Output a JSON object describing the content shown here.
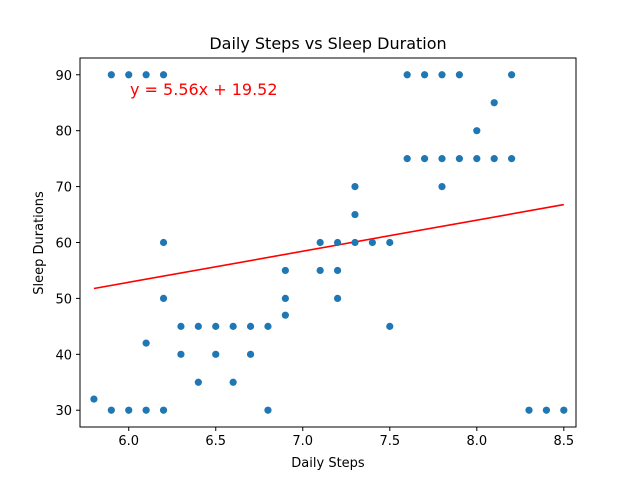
{
  "chart_data": {
    "type": "scatter",
    "title": "Daily Steps vs Sleep Duration",
    "xlabel": "Daily Steps",
    "ylabel": "Sleep Durations",
    "xlim": [
      5.72,
      8.57
    ],
    "ylim": [
      27,
      93
    ],
    "xticks": [
      6.0,
      6.5,
      7.0,
      7.5,
      8.0,
      8.5
    ],
    "xtick_labels": [
      "6.0",
      "6.5",
      "7.0",
      "7.5",
      "8.0",
      "8.5"
    ],
    "yticks": [
      30,
      40,
      50,
      60,
      70,
      80,
      90
    ],
    "ytick_labels": [
      "30",
      "40",
      "50",
      "60",
      "70",
      "80",
      "90"
    ],
    "grid": false,
    "colors": {
      "points": "#1f77b4",
      "regression": "#ff0000"
    },
    "regression": {
      "slope": 5.56,
      "intercept": 19.52,
      "x_range": [
        5.8,
        8.5
      ],
      "equation_label": "y = 5.56x + 19.52"
    },
    "points": [
      [
        5.8,
        32
      ],
      [
        5.9,
        30
      ],
      [
        5.9,
        90
      ],
      [
        6.0,
        30
      ],
      [
        6.0,
        90
      ],
      [
        6.1,
        30
      ],
      [
        6.1,
        42
      ],
      [
        6.1,
        90
      ],
      [
        6.2,
        30
      ],
      [
        6.2,
        50
      ],
      [
        6.2,
        60
      ],
      [
        6.2,
        90
      ],
      [
        6.3,
        40
      ],
      [
        6.3,
        45
      ],
      [
        6.4,
        35
      ],
      [
        6.4,
        45
      ],
      [
        6.5,
        40
      ],
      [
        6.5,
        45
      ],
      [
        6.6,
        35
      ],
      [
        6.6,
        45
      ],
      [
        6.7,
        40
      ],
      [
        6.7,
        45
      ],
      [
        6.8,
        30
      ],
      [
        6.8,
        45
      ],
      [
        6.9,
        47
      ],
      [
        6.9,
        50
      ],
      [
        6.9,
        55
      ],
      [
        7.1,
        55
      ],
      [
        7.1,
        60
      ],
      [
        7.2,
        50
      ],
      [
        7.2,
        55
      ],
      [
        7.2,
        60
      ],
      [
        7.3,
        60
      ],
      [
        7.3,
        65
      ],
      [
        7.3,
        70
      ],
      [
        7.4,
        60
      ],
      [
        7.5,
        45
      ],
      [
        7.5,
        60
      ],
      [
        7.6,
        75
      ],
      [
        7.6,
        90
      ],
      [
        7.7,
        75
      ],
      [
        7.7,
        90
      ],
      [
        7.8,
        70
      ],
      [
        7.8,
        75
      ],
      [
        7.8,
        90
      ],
      [
        7.9,
        75
      ],
      [
        7.9,
        90
      ],
      [
        8.0,
        75
      ],
      [
        8.0,
        80
      ],
      [
        8.1,
        75
      ],
      [
        8.1,
        85
      ],
      [
        8.2,
        75
      ],
      [
        8.2,
        90
      ],
      [
        8.3,
        30
      ],
      [
        8.4,
        30
      ],
      [
        8.5,
        30
      ]
    ]
  }
}
